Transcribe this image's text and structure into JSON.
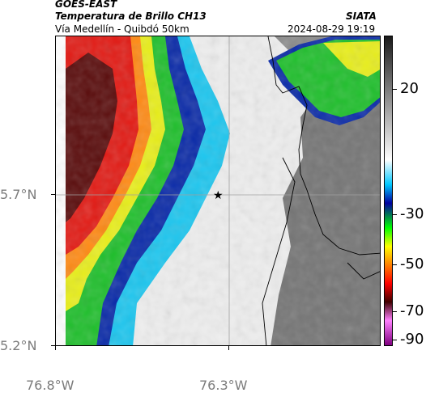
{
  "header": {
    "satellite": "GOES-EAST",
    "product": "Temperatura de Brillo CH13",
    "route": "Vía Medellín - Quibdó 50km",
    "agency": "SIATA",
    "timestamp": "2024-08-29 19:19"
  },
  "axes": {
    "x_labels": [
      "76.8°W",
      "76.3°W"
    ],
    "y_labels": [
      "5.7°N",
      "5.2°N"
    ]
  },
  "colorbar": {
    "labels": [
      "20",
      "-30",
      "-50",
      "-70",
      "-90"
    ],
    "colors": [
      "#1a1a1a",
      "#ffffff",
      "#00c8ff",
      "#0000a0",
      "#00ff00",
      "#ffff00",
      "#ff8000",
      "#ff0000",
      "#400000",
      "#ff80ff",
      "#800080"
    ]
  },
  "map": {
    "marker": "star-marker",
    "colors": {
      "warm_surface": "#7a7a7a",
      "light_cloud": "#f2f2f2",
      "cyan_cloud": "#1cc6ef",
      "blue_cloud": "#0a2aa8",
      "green_cloud": "#1fbf2c",
      "yellow_cloud": "#e8ee1a",
      "orange_cloud": "#ff8a14",
      "red_cloud": "#e21a14",
      "dark_cloud": "#5a0c0c"
    }
  }
}
